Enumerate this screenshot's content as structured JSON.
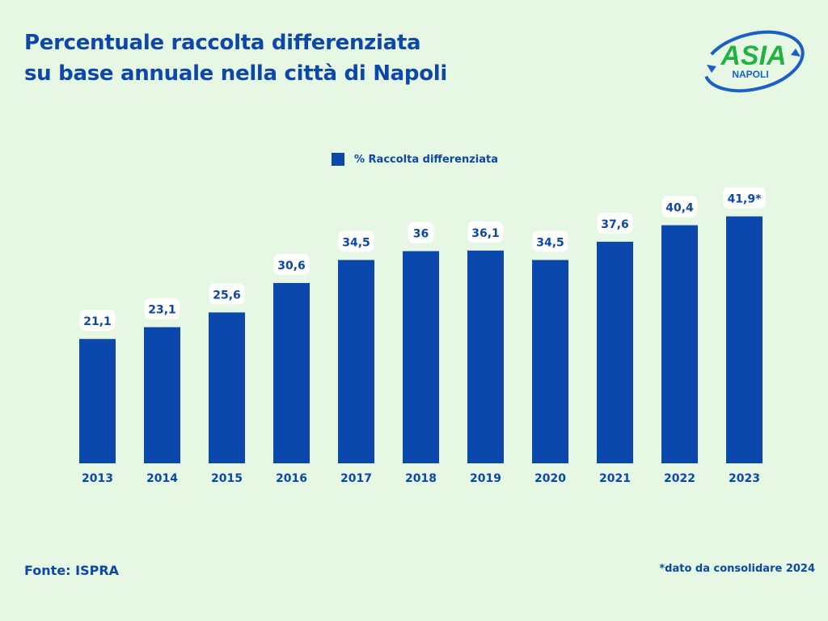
{
  "header": {
    "title_line1": "Percentuale raccolta differenziata",
    "title_line2": "su base annuale nella città di Napoli"
  },
  "logo": {
    "text_main": "ASIA",
    "text_sub": "NAPOLI",
    "colors": {
      "green": "#1fb53c",
      "blue": "#1a5fc7"
    }
  },
  "legend": {
    "label": "% Raccolta differenziata"
  },
  "chart_data": {
    "type": "bar",
    "categories": [
      "2013",
      "2014",
      "2015",
      "2016",
      "2017",
      "2018",
      "2019",
      "2020",
      "2021",
      "2022",
      "2023"
    ],
    "series": [
      {
        "name": "% Raccolta differenziata",
        "values": [
          21.1,
          23.1,
          25.6,
          30.6,
          34.5,
          36,
          36.1,
          34.5,
          37.6,
          40.4,
          41.9
        ],
        "labels": [
          "21,1",
          "23,1",
          "25,6",
          "30,6",
          "34,5",
          "36",
          "36,1",
          "34,5",
          "37,6",
          "40,4",
          "41,9*"
        ]
      }
    ],
    "ylim": [
      0,
      45
    ],
    "legend_position": "top-center",
    "grid": false,
    "bar_color": "#0a48ad",
    "label_box_color": "#ffffff"
  },
  "footer": {
    "source": "Fonte: ISPRA",
    "note": "*dato da consolidare 2024"
  }
}
